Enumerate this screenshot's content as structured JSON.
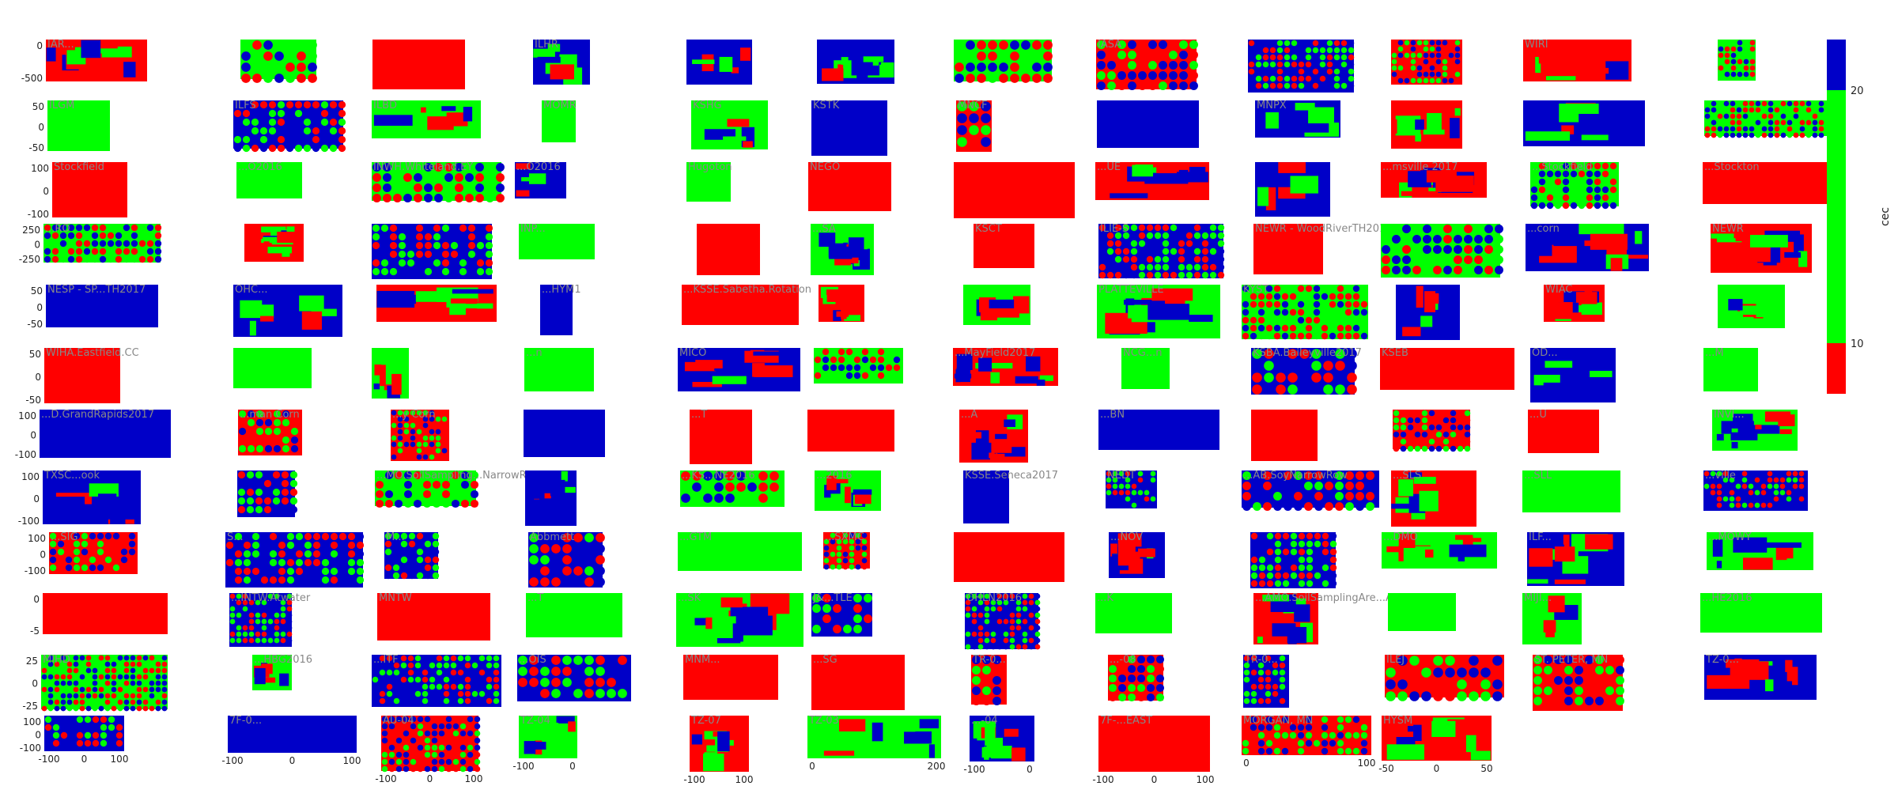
{
  "colors": {
    "low": "#ff0000",
    "mid": "#00ff00",
    "high": "#0000c8",
    "panel_bg": "#e9e9f0",
    "grid": "#ffffff",
    "text": "#222222",
    "title": "#888888"
  },
  "colorbar": {
    "label": "cec",
    "ticks": [
      "10",
      "20"
    ]
  },
  "chart_data": {
    "type": "heatmap",
    "title": "",
    "xlabel": "",
    "ylabel": "",
    "colorbar": {
      "label": "cec",
      "range": [
        8,
        22
      ],
      "ticks": [
        10,
        20
      ],
      "segments": [
        {
          "from": 8,
          "to": 10,
          "color": "#ff0000"
        },
        {
          "from": 10,
          "to": 20,
          "color": "#00ff00"
        },
        {
          "from": 20,
          "to": 22,
          "color": "#0000c8"
        }
      ]
    },
    "panels": [
      {
        "name": "IAR...",
        "yticks": [
          "0",
          "-500"
        ],
        "xticks": []
      },
      {
        "name": "",
        "yticks": [],
        "xticks": []
      },
      {
        "name": "",
        "yticks": [],
        "xticks": []
      },
      {
        "name": "ILHR",
        "yticks": [],
        "xticks": []
      },
      {
        "name": "",
        "yticks": [],
        "xticks": []
      },
      {
        "name": "",
        "yticks": [],
        "xticks": []
      },
      {
        "name": "",
        "yticks": [],
        "xticks": []
      },
      {
        "name": "IASA",
        "yticks": [],
        "xticks": []
      },
      {
        "name": "",
        "yticks": [],
        "xticks": []
      },
      {
        "name": "",
        "yticks": [],
        "xticks": []
      },
      {
        "name": "WIRI",
        "yticks": [],
        "xticks": []
      },
      {
        "name": "",
        "yticks": [],
        "xticks": []
      },
      {
        "name": "ILGM",
        "yticks": [
          "50",
          "0",
          "-50"
        ],
        "xticks": []
      },
      {
        "name": "ILFS",
        "yticks": [],
        "xticks": []
      },
      {
        "name": "ILBD",
        "yticks": [],
        "xticks": []
      },
      {
        "name": "MOMR",
        "yticks": [],
        "xticks": []
      },
      {
        "name": "KSHG",
        "yticks": [],
        "xticks": []
      },
      {
        "name": "KSTK",
        "yticks": [],
        "xticks": []
      },
      {
        "name": "MNCF",
        "yticks": [],
        "xticks": []
      },
      {
        "name": "",
        "yticks": [],
        "xticks": []
      },
      {
        "name": "MNPX",
        "yticks": [],
        "xticks": []
      },
      {
        "name": "",
        "yticks": [],
        "xticks": []
      },
      {
        "name": "",
        "yticks": [],
        "xticks": []
      },
      {
        "name": "",
        "yticks": [],
        "xticks": []
      },
      {
        "name": "Stockfield",
        "yticks": [
          "100",
          "0",
          "-100"
        ],
        "xticks": []
      },
      {
        "name": "...O2016",
        "yticks": [],
        "xticks": []
      },
      {
        "name": "INWH.Whiteland.EY",
        "yticks": [],
        "xticks": []
      },
      {
        "name": "...O2016",
        "yticks": [],
        "xticks": []
      },
      {
        "name": "Hugoton",
        "yticks": [],
        "xticks": []
      },
      {
        "name": "NEGO",
        "yticks": [],
        "xticks": []
      },
      {
        "name": "",
        "yticks": [],
        "xticks": []
      },
      {
        "name": "...UE",
        "yticks": [],
        "xticks": []
      },
      {
        "name": "",
        "yticks": [],
        "xticks": []
      },
      {
        "name": "...msville 2017",
        "yticks": [],
        "xticks": []
      },
      {
        "name": "...Stockfield",
        "yticks": [],
        "xticks": []
      },
      {
        "name": "...Stockton",
        "yticks": [],
        "xticks": []
      },
      {
        "name": "...RO",
        "yticks": [
          "250",
          "0",
          "-250"
        ],
        "xticks": []
      },
      {
        "name": "",
        "yticks": [],
        "xticks": []
      },
      {
        "name": "",
        "yticks": [],
        "xticks": []
      },
      {
        "name": "INP...",
        "yticks": [],
        "xticks": []
      },
      {
        "name": "",
        "yticks": [],
        "xticks": []
      },
      {
        "name": "...SA",
        "yticks": [],
        "xticks": []
      },
      {
        "name": "KSCT",
        "yticks": [],
        "xticks": []
      },
      {
        "name": "ILIE-S",
        "yticks": [],
        "xticks": []
      },
      {
        "name": "NEWR - WoodRiverTH2017",
        "yticks": [],
        "xticks": []
      },
      {
        "name": "",
        "yticks": [],
        "xticks": []
      },
      {
        "name": "...corn",
        "yticks": [],
        "xticks": []
      },
      {
        "name": "NEWR",
        "yticks": [],
        "xticks": []
      },
      {
        "name": "NESP - SP...TH2017",
        "yticks": [
          "50",
          "0",
          "-50"
        ],
        "xticks": []
      },
      {
        "name": "OHC...",
        "yticks": [],
        "xticks": []
      },
      {
        "name": "",
        "yticks": [],
        "xticks": []
      },
      {
        "name": "...HYM1",
        "yticks": [],
        "xticks": []
      },
      {
        "name": "...KSSE.Sabetha.Rotation",
        "yticks": [],
        "xticks": []
      },
      {
        "name": "",
        "yticks": [],
        "xticks": []
      },
      {
        "name": "",
        "yticks": [],
        "xticks": []
      },
      {
        "name": "PLATTEVILLE",
        "yticks": [],
        "xticks": []
      },
      {
        "name": "KYST",
        "yticks": [],
        "xticks": []
      },
      {
        "name": "",
        "yticks": [],
        "xticks": []
      },
      {
        "name": "WIAC",
        "yticks": [],
        "xticks": []
      },
      {
        "name": "",
        "yticks": [],
        "xticks": []
      },
      {
        "name": "WIHA.Eastfield.CC",
        "yticks": [
          "50",
          "0",
          "-50"
        ],
        "xticks": []
      },
      {
        "name": "",
        "yticks": [],
        "xticks": []
      },
      {
        "name": "",
        "yticks": [],
        "xticks": []
      },
      {
        "name": "...n",
        "yticks": [],
        "xticks": []
      },
      {
        "name": "MICO",
        "yticks": [],
        "xticks": []
      },
      {
        "name": "",
        "yticks": [],
        "xticks": []
      },
      {
        "name": "...MayField2017",
        "yticks": [],
        "xticks": []
      },
      {
        "name": "NCG...n",
        "yticks": [],
        "xticks": []
      },
      {
        "name": "KSBA.Baileyville2017",
        "yticks": [],
        "xticks": []
      },
      {
        "name": "KSEB",
        "yticks": [],
        "xticks": []
      },
      {
        "name": "OD...",
        "yticks": [],
        "xticks": []
      },
      {
        "name": "...M",
        "yticks": [],
        "xticks": []
      },
      {
        "name": "...D.GrandRapids2017",
        "yticks": [
          "100",
          "0",
          "-100"
        ],
        "xticks": []
      },
      {
        "name": "...man Corn",
        "yticks": [],
        "xticks": []
      },
      {
        "name": "...y Corn",
        "yticks": [],
        "xticks": []
      },
      {
        "name": "",
        "yticks": [],
        "xticks": []
      },
      {
        "name": "...T",
        "yticks": [],
        "xticks": []
      },
      {
        "name": "",
        "yticks": [],
        "xticks": []
      },
      {
        "name": "...A",
        "yticks": [],
        "xticks": []
      },
      {
        "name": "...BN",
        "yticks": [],
        "xticks": []
      },
      {
        "name": "",
        "yticks": [],
        "xticks": []
      },
      {
        "name": "",
        "yticks": [],
        "xticks": []
      },
      {
        "name": "...U",
        "yticks": [],
        "xticks": []
      },
      {
        "name": "INVI...",
        "yticks": [],
        "xticks": []
      },
      {
        "name": "TXSC...ook",
        "yticks": [
          "100",
          "0",
          "-100"
        ],
        "xticks": []
      },
      {
        "name": "",
        "yticks": [],
        "xticks": []
      },
      {
        "name": "...MO.SoilSampling...NarrowRow",
        "yticks": [],
        "xticks": []
      },
      {
        "name": "",
        "yticks": [],
        "xticks": []
      },
      {
        "name": "...KS...NE2016",
        "yticks": [],
        "xticks": []
      },
      {
        "name": "...2016",
        "yticks": [],
        "xticks": []
      },
      {
        "name": "KSSE.Seneca2017",
        "yticks": [],
        "xticks": []
      },
      {
        "name": "NEDT",
        "yticks": [],
        "xticks": []
      },
      {
        "name": "...AB.SoyNarrowRow",
        "yticks": [],
        "xticks": []
      },
      {
        "name": "...SLS",
        "yticks": [],
        "xticks": []
      },
      {
        "name": "...SLL",
        "yticks": [],
        "xticks": []
      },
      {
        "name": "...ville",
        "yticks": [],
        "xticks": []
      },
      {
        "name": "...SIG",
        "yticks": [
          "100",
          "0",
          "-100"
        ],
        "xticks": []
      },
      {
        "name": "S...",
        "yticks": [],
        "xticks": []
      },
      {
        "name": "M...",
        "yticks": [],
        "xticks": []
      },
      {
        "name": "Abbmett",
        "yticks": [],
        "xticks": []
      },
      {
        "name": "...GTM",
        "yticks": [],
        "xticks": []
      },
      {
        "name": "...SXMC",
        "yticks": [],
        "xticks": []
      },
      {
        "name": "",
        "yticks": [],
        "xticks": []
      },
      {
        "name": "...NOV",
        "yticks": [],
        "xticks": []
      },
      {
        "name": "",
        "yticks": [],
        "xticks": []
      },
      {
        "name": "...DMO",
        "yticks": [],
        "xticks": []
      },
      {
        "name": "ILF...",
        "yticks": [],
        "xticks": []
      },
      {
        "name": "...MOWY",
        "yticks": [],
        "xticks": []
      },
      {
        "name": "",
        "yticks": [
          "0",
          "-5"
        ],
        "xticks": []
      },
      {
        "name": "...INTW.Atwater",
        "yticks": [],
        "xticks": []
      },
      {
        "name": "MNTW",
        "yticks": [],
        "xticks": []
      },
      {
        "name": "...T",
        "yticks": [],
        "xticks": []
      },
      {
        "name": "...SK",
        "yticks": [],
        "xticks": []
      },
      {
        "name": "J&...TLE",
        "yticks": [],
        "xticks": []
      },
      {
        "name": "OHLN2016",
        "yticks": [],
        "xticks": []
      },
      {
        "name": "...K",
        "yticks": [],
        "xticks": []
      },
      {
        "name": "...AMO.SoilSamplingAre...ALE",
        "yticks": [],
        "xticks": []
      },
      {
        "name": "",
        "yticks": [],
        "xticks": []
      },
      {
        "name": "MIJI...",
        "yticks": [],
        "xticks": []
      },
      {
        "name": "...HE2016",
        "yticks": [],
        "xticks": []
      },
      {
        "name": "MIHD",
        "yticks": [
          "25",
          "0",
          "-25"
        ],
        "xticks": []
      },
      {
        "name": "...HBG2016",
        "yticks": [],
        "xticks": []
      },
      {
        "name": "...ITF",
        "yticks": [],
        "xticks": []
      },
      {
        "name": "...OIS",
        "yticks": [],
        "xticks": []
      },
      {
        "name": "MNM...",
        "yticks": [],
        "xticks": []
      },
      {
        "name": "...SG",
        "yticks": [],
        "xticks": []
      },
      {
        "name": "TR-0...",
        "yticks": [],
        "xticks": []
      },
      {
        "name": "...-08",
        "yticks": [],
        "xticks": []
      },
      {
        "name": "TR-0...",
        "yticks": [],
        "xticks": []
      },
      {
        "name": "ILEJ",
        "yticks": [],
        "xticks": []
      },
      {
        "name": "ST. PETER, MN",
        "yticks": [],
        "xticks": []
      },
      {
        "name": "TZ-0...",
        "yticks": [],
        "xticks": []
      },
      {
        "name": "",
        "yticks": [
          "100",
          "0",
          "-100"
        ],
        "xticks": [
          "-100",
          "0",
          "100"
        ]
      },
      {
        "name": "7F-0...",
        "yticks": [],
        "xticks": [
          "-100",
          "0",
          "100"
        ]
      },
      {
        "name": "AU-04",
        "yticks": [],
        "xticks": [
          "-100",
          "0",
          "100"
        ]
      },
      {
        "name": "TZ-04",
        "yticks": [],
        "xticks": [
          "-100",
          "0"
        ]
      },
      {
        "name": "TZ-07",
        "yticks": [],
        "xticks": [
          "-100",
          "100"
        ]
      },
      {
        "name": "TZ-03",
        "yticks": [],
        "xticks": [
          "0",
          "200"
        ]
      },
      {
        "name": "...-04",
        "yticks": [],
        "xticks": [
          "-100",
          "0"
        ]
      },
      {
        "name": "7F-...EAST",
        "yticks": [],
        "xticks": [
          "-100",
          "0",
          "100"
        ]
      },
      {
        "name": "MORGAN, MN",
        "yticks": [],
        "xticks": [
          "0",
          "100"
        ]
      },
      {
        "name": "HYSM",
        "yticks": [],
        "xticks": [
          "-50",
          "0",
          "50"
        ]
      }
    ]
  }
}
